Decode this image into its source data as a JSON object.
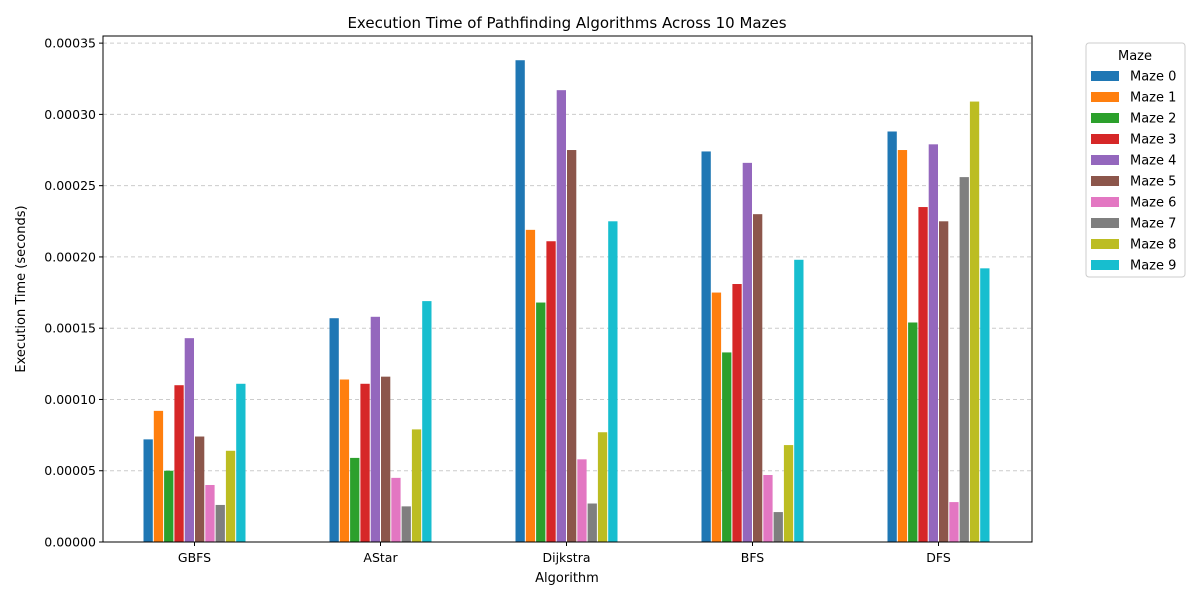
{
  "chart_data": {
    "type": "bar",
    "title": "Execution Time of Pathfinding Algorithms Across 10 Mazes",
    "xlabel": "Algorithm",
    "ylabel": "Execution Time (seconds)",
    "ylim": [
      0,
      0.000355
    ],
    "yticks": [
      0,
      5e-05,
      0.0001,
      0.00015,
      0.0002,
      0.00025,
      0.0003,
      0.00035
    ],
    "ytick_labels": [
      "0.00000",
      "0.00005",
      "0.00010",
      "0.00015",
      "0.00020",
      "0.00025",
      "0.00030",
      "0.00035"
    ],
    "grid": true,
    "legend_title": "Maze",
    "legend_position": "outside-top-right",
    "categories": [
      "GBFS",
      "AStar",
      "Dijkstra",
      "BFS",
      "DFS"
    ],
    "series": [
      {
        "name": "Maze 0",
        "color": "#1f77b4",
        "values": [
          7.2e-05,
          0.000157,
          0.000338,
          0.000274,
          0.000288
        ]
      },
      {
        "name": "Maze 1",
        "color": "#ff7f0e",
        "values": [
          9.2e-05,
          0.000114,
          0.000219,
          0.000175,
          0.000275
        ]
      },
      {
        "name": "Maze 2",
        "color": "#2ca02c",
        "values": [
          5e-05,
          5.9e-05,
          0.000168,
          0.000133,
          0.000154
        ]
      },
      {
        "name": "Maze 3",
        "color": "#d62728",
        "values": [
          0.00011,
          0.000111,
          0.000211,
          0.000181,
          0.000235
        ]
      },
      {
        "name": "Maze 4",
        "color": "#9467bd",
        "values": [
          0.000143,
          0.000158,
          0.000317,
          0.000266,
          0.000279
        ]
      },
      {
        "name": "Maze 5",
        "color": "#8c564b",
        "values": [
          7.4e-05,
          0.000116,
          0.000275,
          0.00023,
          0.000225
        ]
      },
      {
        "name": "Maze 6",
        "color": "#e377c2",
        "values": [
          4e-05,
          4.5e-05,
          5.8e-05,
          4.7e-05,
          2.8e-05
        ]
      },
      {
        "name": "Maze 7",
        "color": "#7f7f7f",
        "values": [
          2.6e-05,
          2.5e-05,
          2.7e-05,
          2.1e-05,
          0.000256
        ]
      },
      {
        "name": "Maze 8",
        "color": "#bcbd22",
        "values": [
          6.4e-05,
          7.9e-05,
          7.7e-05,
          6.8e-05,
          0.000309
        ]
      },
      {
        "name": "Maze 9",
        "color": "#17becf",
        "values": [
          0.000111,
          0.000169,
          0.000225,
          0.000198,
          0.000192
        ]
      }
    ]
  }
}
